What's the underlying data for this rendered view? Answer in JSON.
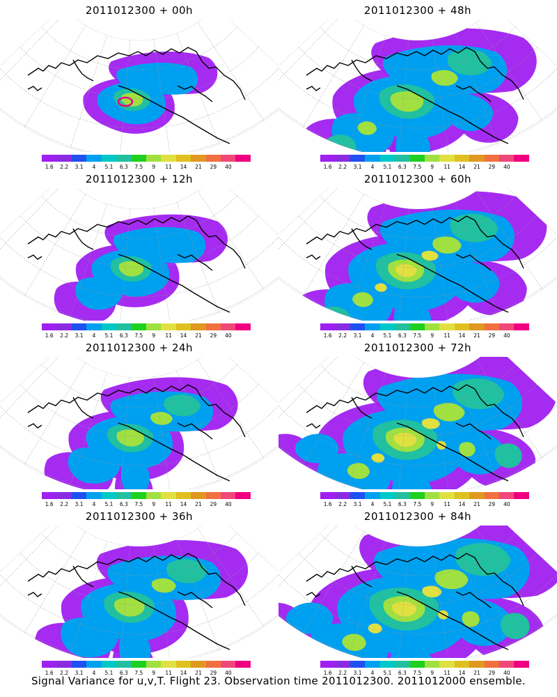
{
  "footer": "Signal Variance for u,v,T. Flight 23. Observation time 2011012300. 2011012000 ensemble.",
  "colorbar": {
    "colors": [
      "#a020f0",
      "#8a2be2",
      "#2050f0",
      "#00a0f0",
      "#00c8c8",
      "#20c0a0",
      "#20d020",
      "#a0e040",
      "#e0e040",
      "#e0c020",
      "#e09820",
      "#f07040",
      "#f04878",
      "#f00080"
    ],
    "labels": [
      "1.6",
      "2.2",
      "3.1",
      "4",
      "5.1",
      "6.3",
      "7.5",
      "9",
      "11",
      "14",
      "21",
      "29",
      "40"
    ]
  },
  "panels": [
    {
      "title": "2011012300 + 00h",
      "level": 0
    },
    {
      "title": "2011012300 + 48h",
      "level": 4
    },
    {
      "title": "2011012300 + 12h",
      "level": 1
    },
    {
      "title": "2011012300 + 60h",
      "level": 5
    },
    {
      "title": "2011012300 + 24h",
      "level": 2
    },
    {
      "title": "2011012300 + 72h",
      "level": 6
    },
    {
      "title": "2011012300 + 36h",
      "level": 3
    },
    {
      "title": "2011012300 + 84h",
      "level": 7
    }
  ]
}
